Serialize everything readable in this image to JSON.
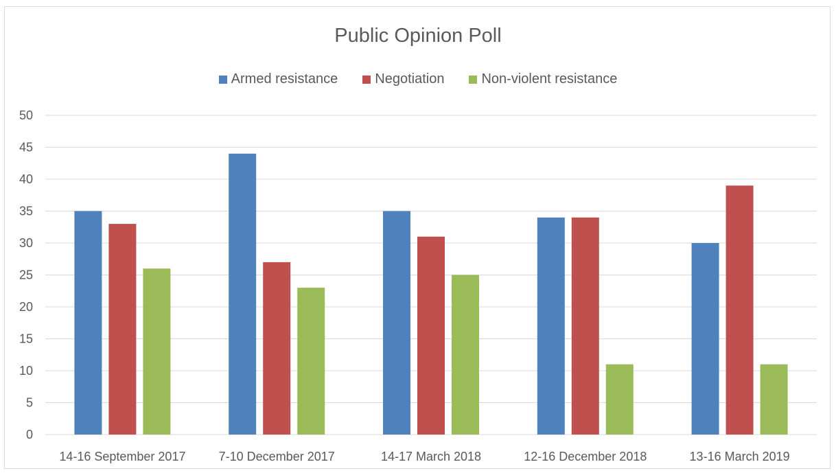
{
  "chart_data": {
    "type": "bar",
    "title": "Public Opinion Poll",
    "xlabel": "",
    "ylabel": "",
    "ylim": [
      0,
      50
    ],
    "yticks": [
      0,
      5,
      10,
      15,
      20,
      25,
      30,
      35,
      40,
      45,
      50
    ],
    "grid": true,
    "legend_position": "top",
    "categories": [
      "14-16 September 2017",
      "7-10 December 2017",
      "14-17 March 2018",
      "12-16 December 2018",
      "13-16 March 2019"
    ],
    "series": [
      {
        "name": "Armed resistance",
        "color": "#4f81bd",
        "values": [
          35,
          44,
          35,
          34,
          30
        ]
      },
      {
        "name": "Negotiation",
        "color": "#c0504d",
        "values": [
          33,
          27,
          31,
          34,
          39
        ]
      },
      {
        "name": "Non-violent resistance",
        "color": "#9bbb59",
        "values": [
          26,
          23,
          25,
          11,
          11
        ]
      }
    ]
  }
}
